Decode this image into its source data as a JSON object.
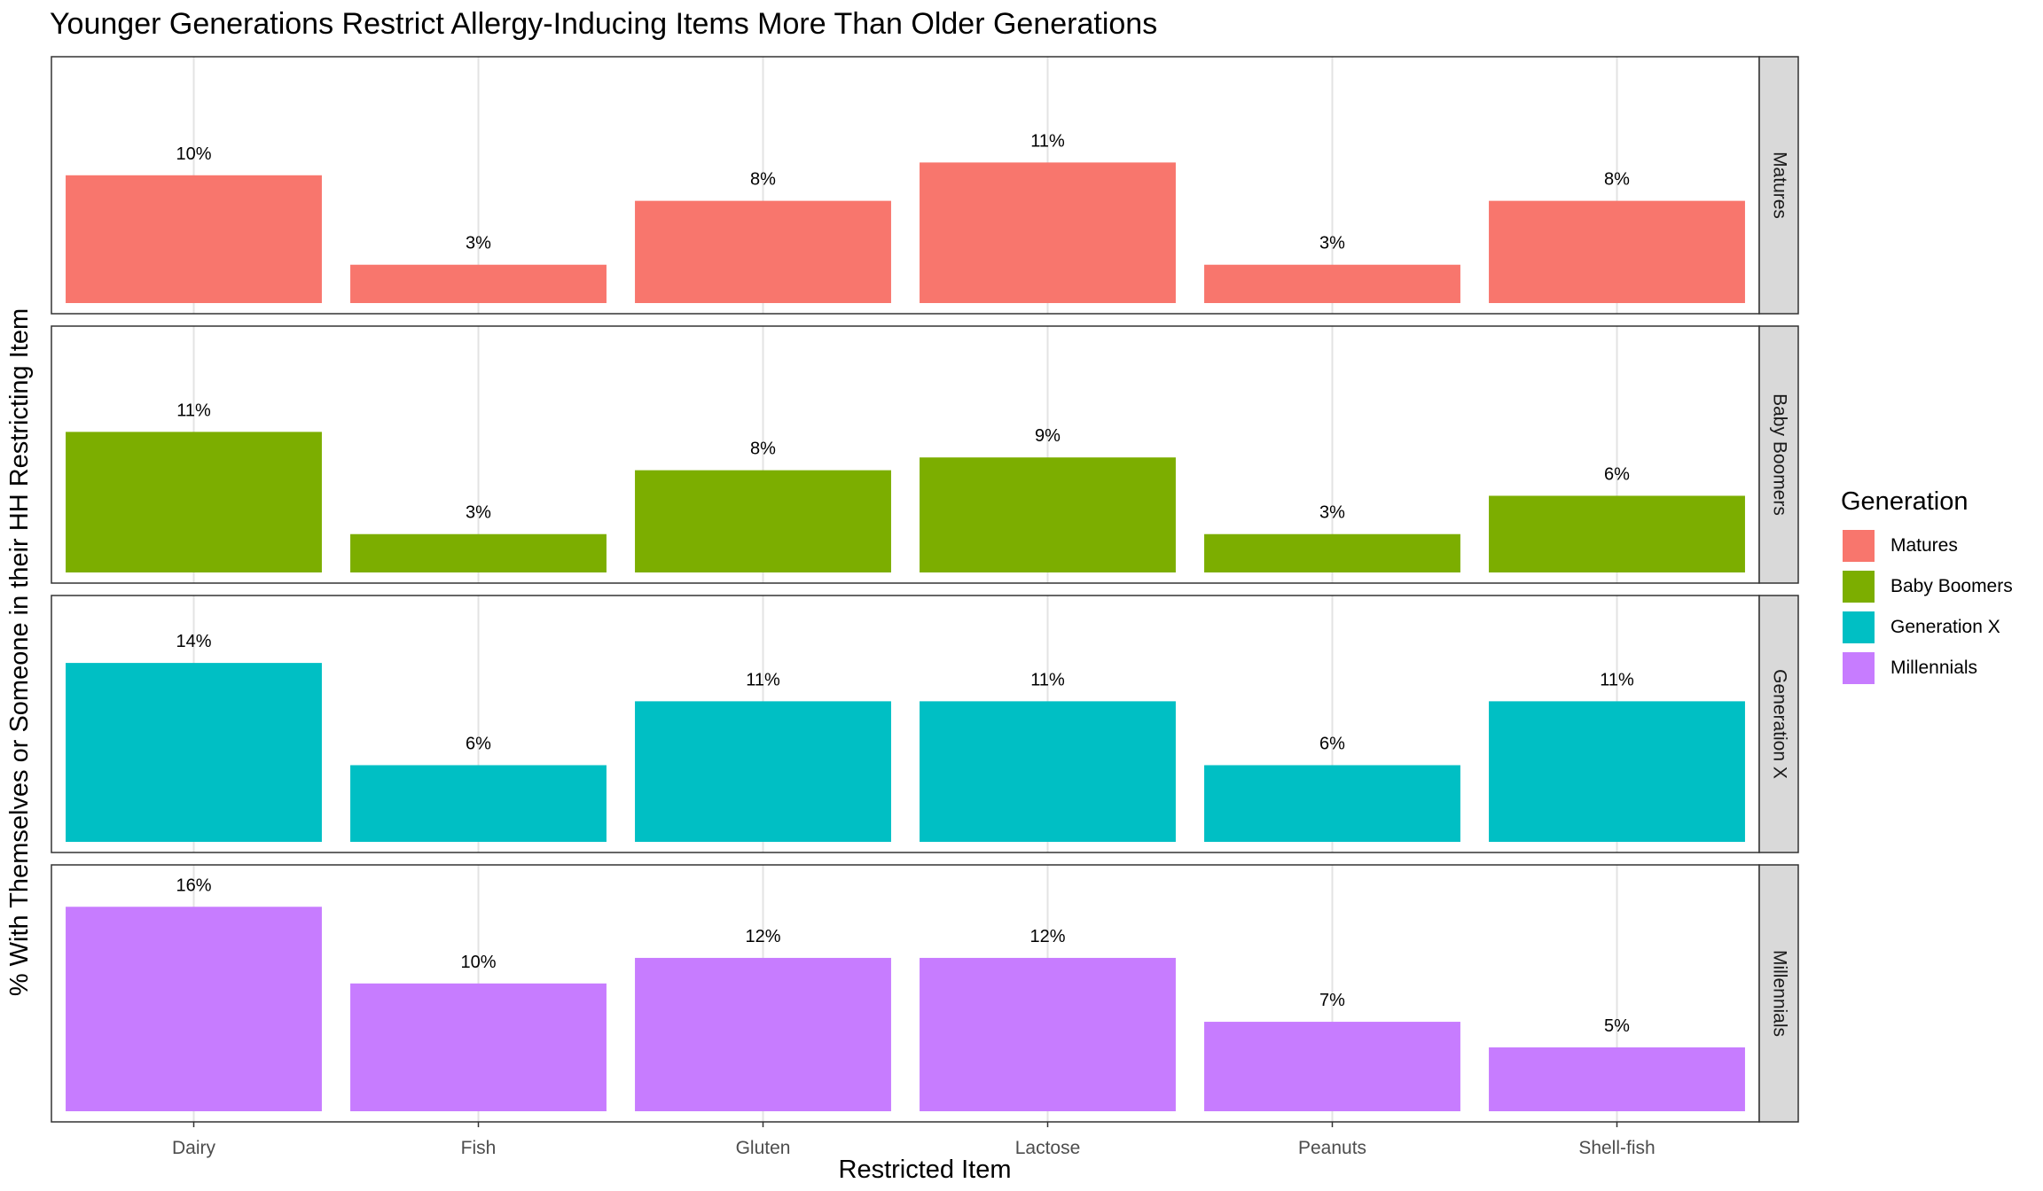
{
  "chart_data": {
    "type": "bar",
    "title": "Younger Generations Restrict Allergy-Inducing Items More Than Older Generations",
    "xlabel": "Restricted Item",
    "ylabel": "% With Themselves or Someone in their HH Restricting Item",
    "categories": [
      "Dairy",
      "Fish",
      "Gluten",
      "Lactose",
      "Peanuts",
      "Shell-fish"
    ],
    "legend_title": "Generation",
    "legend_position": "right",
    "grid": true,
    "facets": "rows by series",
    "series": [
      {
        "name": "Matures",
        "color": "#F8766D",
        "values": [
          10,
          3,
          8,
          11,
          3,
          8
        ],
        "labels": [
          "10%",
          "3%",
          "8%",
          "11%",
          "3%",
          "8%"
        ]
      },
      {
        "name": "Baby Boomers",
        "color": "#7CAE00",
        "values": [
          11,
          3,
          8,
          9,
          3,
          6
        ],
        "labels": [
          "11%",
          "3%",
          "8%",
          "9%",
          "3%",
          "6%"
        ]
      },
      {
        "name": "Generation X",
        "color": "#00BFC4",
        "values": [
          14,
          6,
          11,
          11,
          6,
          11
        ],
        "labels": [
          "14%",
          "6%",
          "11%",
          "11%",
          "6%",
          "11%"
        ]
      },
      {
        "name": "Millennials",
        "color": "#C77CFF",
        "values": [
          16,
          10,
          12,
          12,
          7,
          5
        ],
        "labels": [
          "16%",
          "10%",
          "12%",
          "12%",
          "7%",
          "5%"
        ]
      }
    ]
  }
}
